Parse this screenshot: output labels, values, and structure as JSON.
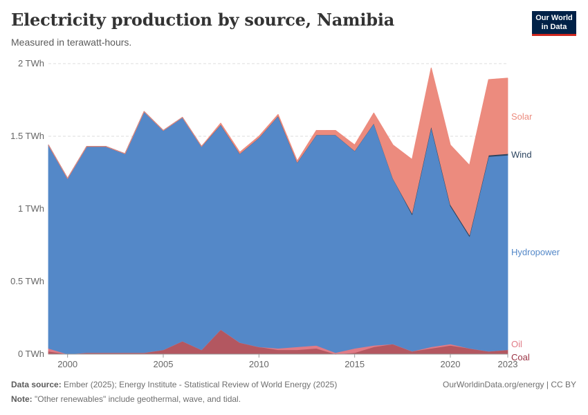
{
  "header": {
    "title": "Electricity production by source, Namibia",
    "subtitle": "Measured in terawatt-hours.",
    "logo_line1": "Our World",
    "logo_line2": "in Data"
  },
  "footer": {
    "source_label": "Data source:",
    "source_text": "Ember (2025); Energy Institute - Statistical Review of World Energy (2025)",
    "note_label": "Note:",
    "note_text": "\"Other renewables\" include geothermal, wave, and tidal.",
    "credit": "OurWorldinData.org/energy | CC BY"
  },
  "colors": {
    "coal": "#b35760",
    "oil": "#e07b86",
    "hydropower": "#5488c8",
    "wind": "#2d4560",
    "solar": "#ec8b7e",
    "grid": "#dddddd",
    "axis_text": "#666666"
  },
  "chart_data": {
    "type": "area",
    "stacked": true,
    "x": [
      1999,
      2000,
      2001,
      2002,
      2003,
      2004,
      2005,
      2006,
      2007,
      2008,
      2009,
      2010,
      2011,
      2012,
      2013,
      2014,
      2015,
      2016,
      2017,
      2018,
      2019,
      2020,
      2021,
      2022,
      2023
    ],
    "x_tick_labels": [
      "2000",
      "2005",
      "2010",
      "2015",
      "2020",
      "2023"
    ],
    "x_tick_values": [
      2000,
      2005,
      2010,
      2015,
      2020,
      2023
    ],
    "y_tick_labels": [
      "0 TWh",
      "0.5 TWh",
      "1 TWh",
      "1.5 TWh",
      "2 TWh"
    ],
    "y_tick_values": [
      0,
      0.5,
      1,
      1.5,
      2
    ],
    "ylim": [
      0,
      2
    ],
    "unit": "TWh",
    "grid": "horizontal dashed",
    "legend": "right, inline labels",
    "series": [
      {
        "name": "Coal",
        "color_key": "coal",
        "values": [
          0.02,
          0.0,
          0.01,
          0.01,
          0.01,
          0.01,
          0.03,
          0.09,
          0.03,
          0.17,
          0.08,
          0.05,
          0.03,
          0.03,
          0.04,
          0.0,
          0.01,
          0.05,
          0.07,
          0.02,
          0.04,
          0.06,
          0.04,
          0.02,
          0.03
        ]
      },
      {
        "name": "Oil",
        "color_key": "oil",
        "values": [
          0.02,
          0.0,
          0.0,
          0.0,
          0.0,
          0.0,
          0.0,
          0.0,
          0.0,
          0.0,
          0.0,
          0.0,
          0.01,
          0.02,
          0.02,
          0.01,
          0.03,
          0.01,
          0.0,
          0.0,
          0.01,
          0.01,
          0.0,
          0.0,
          0.0
        ]
      },
      {
        "name": "Hydropower",
        "color_key": "hydropower",
        "values": [
          1.4,
          1.21,
          1.42,
          1.42,
          1.37,
          1.66,
          1.51,
          1.54,
          1.4,
          1.41,
          1.3,
          1.44,
          1.6,
          1.27,
          1.45,
          1.5,
          1.36,
          1.53,
          1.14,
          0.94,
          1.51,
          0.95,
          0.77,
          1.34,
          1.34
        ]
      },
      {
        "name": "Wind",
        "color_key": "wind",
        "values": [
          0,
          0,
          0,
          0,
          0,
          0,
          0,
          0,
          0,
          0,
          0,
          0,
          0,
          0,
          0,
          0,
          0,
          0,
          0,
          0.01,
          0.01,
          0.01,
          0.01,
          0.01,
          0.01
        ]
      },
      {
        "name": "Solar",
        "color_key": "solar",
        "values": [
          0,
          0,
          0,
          0,
          0,
          0,
          0,
          0,
          0,
          0.01,
          0.01,
          0.01,
          0.01,
          0.01,
          0.03,
          0.03,
          0.04,
          0.07,
          0.23,
          0.37,
          0.4,
          0.41,
          0.48,
          0.52,
          0.52
        ]
      }
    ]
  }
}
